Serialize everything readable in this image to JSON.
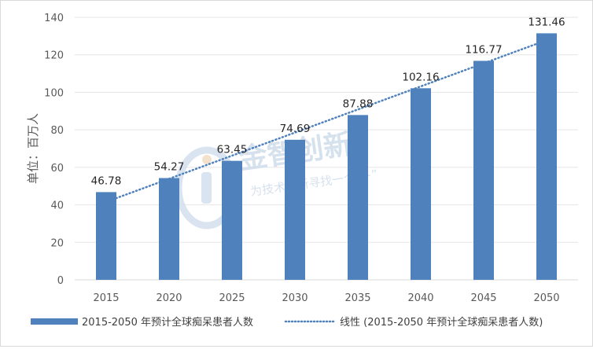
{
  "chart_data": {
    "type": "bar",
    "categories": [
      "2015",
      "2020",
      "2025",
      "2030",
      "2035",
      "2040",
      "2045",
      "2050"
    ],
    "series": [
      {
        "name": "2015-2050 年预计全球痴呆患者人数",
        "values": [
          46.78,
          54.27,
          63.45,
          74.69,
          87.88,
          102.16,
          116.77,
          131.46
        ],
        "color": "#4f81bd"
      }
    ],
    "trendline": {
      "name": "线性 (2015-2050 年预计全球痴呆患者人数)",
      "type": "linear",
      "style": "dotted",
      "color": "#4f81bd"
    },
    "data_labels": [
      "46.78",
      "54.27",
      "63.45",
      "74.69",
      "87.88",
      "102.16",
      "116.77",
      "131.46"
    ],
    "title": "",
    "xlabel": "",
    "ylabel": "单位：百万人",
    "ylim": [
      0,
      140
    ],
    "yticks": [
      "0",
      "20",
      "40",
      "60",
      "80",
      "100",
      "120",
      "140"
    ],
    "grid": true,
    "legend_position": "bottom"
  },
  "watermark": {
    "title": "金智创新",
    "subtitle": "为技术创新寻找一个“+”"
  }
}
